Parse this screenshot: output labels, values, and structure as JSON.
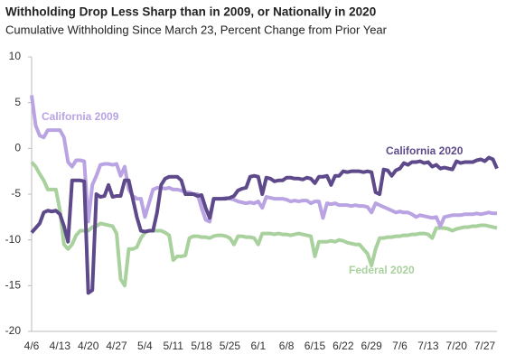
{
  "chart_data": {
    "type": "line",
    "title": "Withholding Drop Less Sharp than in 2009, or Nationally in 2020",
    "subtitle": "Cumulative Withholding Since March 23, Percent Change from Prior Year",
    "categories": [
      "4/6",
      null,
      null,
      null,
      null,
      null,
      null,
      "4/13",
      null,
      null,
      null,
      null,
      null,
      null,
      "4/20",
      null,
      null,
      null,
      null,
      null,
      null,
      "4/27",
      null,
      null,
      null,
      null,
      null,
      null,
      "5/4",
      null,
      null,
      null,
      null,
      null,
      null,
      "5/11",
      null,
      null,
      null,
      null,
      null,
      null,
      "5/18",
      null,
      null,
      null,
      null,
      null,
      null,
      "5/25",
      null,
      null,
      null,
      null,
      null,
      null,
      "6/1",
      null,
      null,
      null,
      null,
      null,
      null,
      "6/8",
      null,
      null,
      null,
      null,
      null,
      null,
      "6/15",
      null,
      null,
      null,
      null,
      null,
      null,
      "6/22",
      null,
      null,
      null,
      null,
      null,
      null,
      "6/29",
      null,
      null,
      null,
      null,
      null,
      null,
      "7/6",
      null,
      null,
      null,
      null,
      null,
      null,
      "7/13",
      null,
      null,
      null,
      null,
      null,
      null,
      "7/20",
      null,
      null,
      null,
      null,
      null,
      null,
      "7/27",
      null,
      null,
      null
    ],
    "series": [
      {
        "name": "California 2020",
        "color": "#5e4a8b",
        "values": [
          -9.2,
          -8.7,
          -8.2,
          -7,
          -6.8,
          -6.9,
          -6.8,
          -7.2,
          -8.5,
          -10.2,
          -3.5,
          -3.5,
          -3.5,
          -3.6,
          -15.8,
          -15.5,
          -5,
          -5.3,
          -5.2,
          -4,
          -5.3,
          -5.2,
          -5.2,
          -3.5,
          -3.5,
          -5.5,
          -7.5,
          -9,
          -9.1,
          -9,
          -9,
          -7,
          -4,
          -3.3,
          -3.1,
          -3.1,
          -3.1,
          -3.5,
          -5,
          -5,
          -5,
          -5.2,
          -5.1,
          -6.5,
          -7.6,
          -5.5,
          -5.5,
          -5.5,
          -5.5,
          -5.4,
          -5.2,
          -4.6,
          -4.4,
          -4.3,
          -3.1,
          -3,
          -3.1,
          -5,
          -3.2,
          -3.3,
          -3.6,
          -3.5,
          -3.5,
          -3.2,
          -3.2,
          -3.3,
          -3.3,
          -3.4,
          -3.2,
          -3.3,
          -3.8,
          -3.1,
          -3.1,
          -3,
          -4,
          -3,
          -3,
          -2.5,
          -2.6,
          -2.5,
          -2.5,
          -2.5,
          -2.6,
          -2.5,
          -2.6,
          -4.8,
          -5,
          -2.3,
          -2.4,
          -3,
          -2.4,
          -2.2,
          -1.6,
          -1.8,
          -1.5,
          -1.5,
          -1.4,
          -1.6,
          -1.5,
          -2,
          -1.8,
          -2.2,
          -2.1,
          -2.2,
          -2.3,
          -1.4,
          -1.6,
          -1.5,
          -1.5,
          -1.5,
          -1.3,
          -1.2,
          -1.4,
          -1,
          -1.2,
          -2.2
        ]
      },
      {
        "name": "California 2009",
        "color": "#b9a3e3",
        "values": [
          5.8,
          2.5,
          1.4,
          1.2,
          2,
          2,
          2,
          2,
          1.2,
          -1.5,
          -2,
          -1.3,
          -1.3,
          -1.4,
          -8,
          -4,
          -3,
          -1.8,
          -1.7,
          -1.7,
          -1.8,
          -1.7,
          -3,
          -2,
          -4.5,
          -5.2,
          -5.5,
          -5.5,
          -7.5,
          -6,
          -4.5,
          -4.3,
          -4.3,
          -4.4,
          -4.3,
          -4.5,
          -4.5,
          -4.6,
          -4.8,
          -4.8,
          -5,
          -5,
          -6.5,
          -7.8,
          -8,
          -5.5,
          -5.5,
          -5.5,
          -5.4,
          -5.5,
          -5.6,
          -5.8,
          -5.9,
          -6,
          -5.9,
          -6,
          -5.8,
          -6.5,
          -5.3,
          -5.4,
          -5.5,
          -5.5,
          -5.5,
          -5.6,
          -5.8,
          -5.7,
          -5.8,
          -5.7,
          -5.7,
          -6,
          -5.8,
          -5.8,
          -7.6,
          -6,
          -6.1,
          -6,
          -6.2,
          -6.2,
          -6.2,
          -6.3,
          -6.2,
          -6.3,
          -6.3,
          -6.4,
          -7,
          -6,
          -6.2,
          -6.4,
          -6.6,
          -6.8,
          -7,
          -6.9,
          -7,
          -7,
          -7.2,
          -7.5,
          -7.3,
          -7.4,
          -7.5,
          -7.6,
          -7.5,
          -8.5,
          -7.5,
          -7.4,
          -7.3,
          -7.3,
          -7.3,
          -7.2,
          -7.2,
          -7.2,
          -7.1,
          -7.2,
          -7.1,
          -7,
          -7.1,
          -7.1
        ]
      },
      {
        "name": "Federal 2020",
        "color": "#a9d19e",
        "values": [
          -1.5,
          -2,
          -2.8,
          -3.5,
          -4.5,
          -4.5,
          -4.5,
          -6.8,
          -10.5,
          -11,
          -10.5,
          -9.5,
          -9,
          -9,
          -9,
          -8.6,
          -8.5,
          -8.2,
          -8.3,
          -8.4,
          -8.5,
          -9.3,
          -14.3,
          -15,
          -11,
          -11,
          -10.8,
          -9.8,
          -9.2,
          -9,
          -9,
          -9,
          -9,
          -9.2,
          -9.5,
          -12.2,
          -11.8,
          -11.8,
          -11.7,
          -9.8,
          -9.6,
          -9.6,
          -9.7,
          -9.7,
          -9.8,
          -9.6,
          -9.5,
          -9.5,
          -9.6,
          -9.8,
          -10.5,
          -9.6,
          -9.6,
          -9.7,
          -9.7,
          -9.8,
          -10.5,
          -9.3,
          -9.3,
          -9.3,
          -9.4,
          -9.3,
          -9.4,
          -9.4,
          -9.5,
          -9.4,
          -9.3,
          -9.4,
          -9.5,
          -9.6,
          -11.8,
          -10.2,
          -10.2,
          -10.2,
          -10.1,
          -10.2,
          -10,
          -10.1,
          -10.3,
          -10.4,
          -10.5,
          -10.5,
          -11,
          -11.5,
          -12.8,
          -11,
          -9.8,
          -9.8,
          -9.7,
          -9.7,
          -9.6,
          -9.6,
          -9.5,
          -9.5,
          -9.4,
          -9.4,
          -9.3,
          -9.3,
          -9.4,
          -9.8,
          -8.7,
          -8.7,
          -8.7,
          -8.8,
          -9,
          -8.8,
          -8.7,
          -8.6,
          -8.6,
          -8.5,
          -8.5,
          -8.4,
          -8.4,
          -8.5,
          -8.6,
          -8.7
        ]
      }
    ],
    "ylim": [
      -20,
      10
    ],
    "yticks": [
      10,
      5,
      0,
      -5,
      -10,
      -15,
      -20
    ],
    "grid": false
  }
}
